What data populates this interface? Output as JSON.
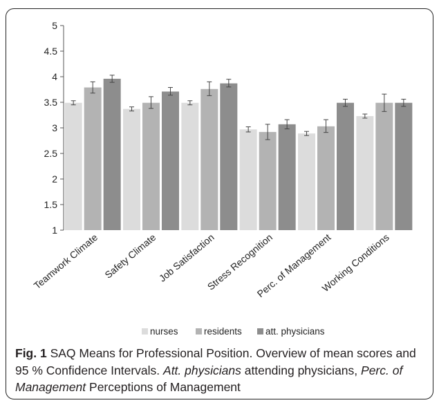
{
  "chart_data": {
    "type": "bar",
    "categories": [
      "Teamwork Climate",
      "Safety Climate",
      "Job Satisfaction",
      "Stress Recognition",
      "Perc. of Management",
      "Working Conditions"
    ],
    "series": [
      {
        "name": "nurses",
        "color": "#dcdcdc",
        "values": [
          3.49,
          3.37,
          3.49,
          2.97,
          2.89,
          3.23
        ],
        "ci_low": [
          3.45,
          3.33,
          3.45,
          2.92,
          2.85,
          3.19
        ],
        "ci_high": [
          3.53,
          3.41,
          3.53,
          3.02,
          2.93,
          3.27
        ]
      },
      {
        "name": "residents",
        "color": "#b3b3b3",
        "values": [
          3.79,
          3.49,
          3.76,
          2.92,
          3.03,
          3.49
        ],
        "ci_low": [
          3.68,
          3.38,
          3.63,
          2.77,
          2.91,
          3.32
        ],
        "ci_high": [
          3.9,
          3.61,
          3.9,
          3.07,
          3.16,
          3.66
        ]
      },
      {
        "name": "att. physicians",
        "color": "#8d8d8d",
        "values": [
          3.96,
          3.71,
          3.87,
          3.07,
          3.49,
          3.49
        ],
        "ci_low": [
          3.89,
          3.64,
          3.8,
          2.98,
          3.42,
          3.42
        ],
        "ci_high": [
          4.03,
          3.79,
          3.95,
          3.16,
          3.56,
          3.56
        ]
      }
    ],
    "yticks": [
      "1",
      "1.5",
      "2",
      "2.5",
      "3",
      "3.5",
      "4",
      "4.5",
      "5"
    ],
    "ylim": [
      1,
      5
    ],
    "legend_position": "bottom",
    "grid": false
  },
  "caption": {
    "fig_label": "Fig. 1",
    "title": " SAQ Means for Professional Position. Overview of mean scores and 95 % Confidence Intervals. ",
    "abbr1_term": "Att. physicians",
    "abbr1_def": " attending physicians, ",
    "abbr2_term": "Perc. of Management",
    "abbr2_def": " Perceptions of Management"
  }
}
